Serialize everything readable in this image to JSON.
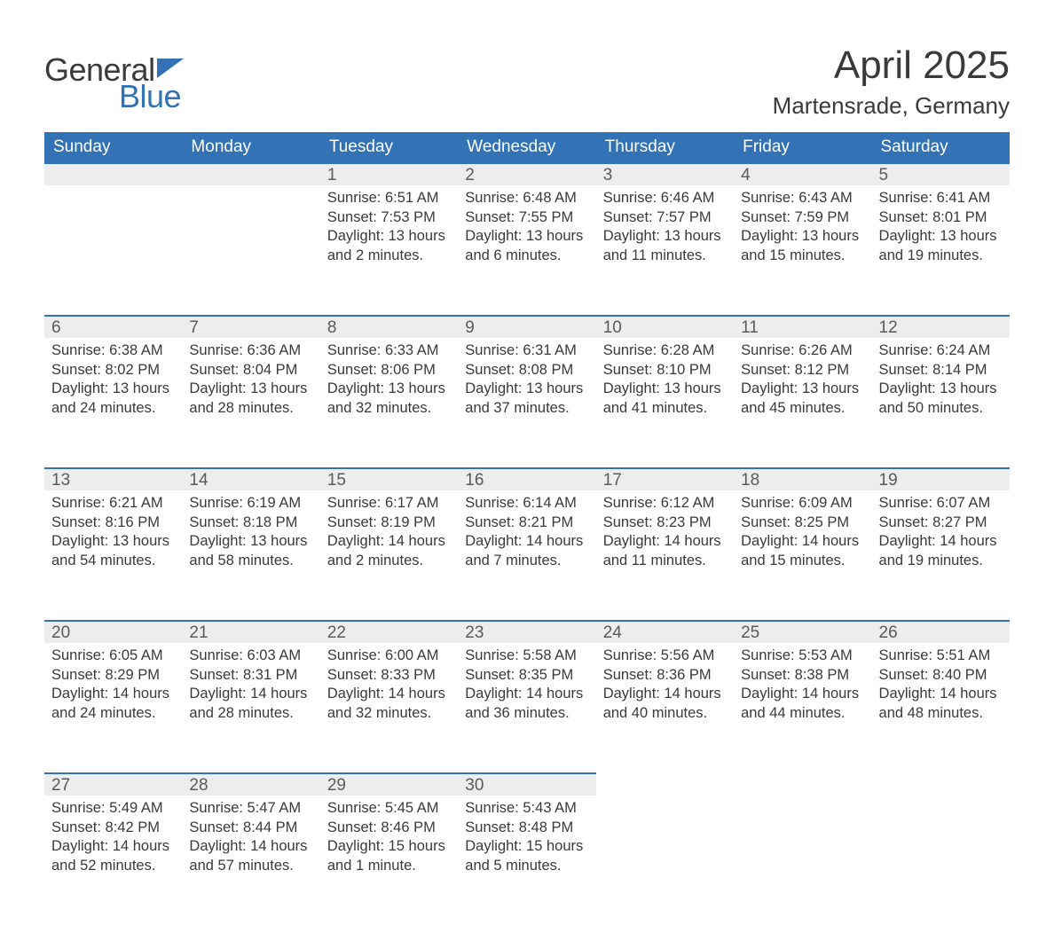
{
  "brand": {
    "text_general": "General",
    "text_blue": "Blue",
    "colors": {
      "dark": "#3a3a3a",
      "accent": "#3373b5",
      "header_bg": "#3373b5",
      "daynum_bg": "#ededed"
    }
  },
  "title": "April 2025",
  "location": "Martensrade, Germany",
  "calendar": {
    "type": "calendar-table",
    "columns": [
      "Sunday",
      "Monday",
      "Tuesday",
      "Wednesday",
      "Thursday",
      "Friday",
      "Saturday"
    ],
    "header_bg": "#3373b5",
    "header_text_color": "#ffffff",
    "daynum_bg": "#ededed",
    "daynum_border_top": "#3373b5",
    "cell_text_color": "#3a3a3a",
    "font_size_header": 19,
    "font_size_daynum": 19,
    "font_size_body": 16.5,
    "weeks": [
      [
        {
          "day": "",
          "sunrise": "",
          "sunset": "",
          "daylight": ""
        },
        {
          "day": "",
          "sunrise": "",
          "sunset": "",
          "daylight": ""
        },
        {
          "day": "1",
          "sunrise": "Sunrise: 6:51 AM",
          "sunset": "Sunset: 7:53 PM",
          "daylight": "Daylight: 13 hours and 2 minutes."
        },
        {
          "day": "2",
          "sunrise": "Sunrise: 6:48 AM",
          "sunset": "Sunset: 7:55 PM",
          "daylight": "Daylight: 13 hours and 6 minutes."
        },
        {
          "day": "3",
          "sunrise": "Sunrise: 6:46 AM",
          "sunset": "Sunset: 7:57 PM",
          "daylight": "Daylight: 13 hours and 11 minutes."
        },
        {
          "day": "4",
          "sunrise": "Sunrise: 6:43 AM",
          "sunset": "Sunset: 7:59 PM",
          "daylight": "Daylight: 13 hours and 15 minutes."
        },
        {
          "day": "5",
          "sunrise": "Sunrise: 6:41 AM",
          "sunset": "Sunset: 8:01 PM",
          "daylight": "Daylight: 13 hours and 19 minutes."
        }
      ],
      [
        {
          "day": "6",
          "sunrise": "Sunrise: 6:38 AM",
          "sunset": "Sunset: 8:02 PM",
          "daylight": "Daylight: 13 hours and 24 minutes."
        },
        {
          "day": "7",
          "sunrise": "Sunrise: 6:36 AM",
          "sunset": "Sunset: 8:04 PM",
          "daylight": "Daylight: 13 hours and 28 minutes."
        },
        {
          "day": "8",
          "sunrise": "Sunrise: 6:33 AM",
          "sunset": "Sunset: 8:06 PM",
          "daylight": "Daylight: 13 hours and 32 minutes."
        },
        {
          "day": "9",
          "sunrise": "Sunrise: 6:31 AM",
          "sunset": "Sunset: 8:08 PM",
          "daylight": "Daylight: 13 hours and 37 minutes."
        },
        {
          "day": "10",
          "sunrise": "Sunrise: 6:28 AM",
          "sunset": "Sunset: 8:10 PM",
          "daylight": "Daylight: 13 hours and 41 minutes."
        },
        {
          "day": "11",
          "sunrise": "Sunrise: 6:26 AM",
          "sunset": "Sunset: 8:12 PM",
          "daylight": "Daylight: 13 hours and 45 minutes."
        },
        {
          "day": "12",
          "sunrise": "Sunrise: 6:24 AM",
          "sunset": "Sunset: 8:14 PM",
          "daylight": "Daylight: 13 hours and 50 minutes."
        }
      ],
      [
        {
          "day": "13",
          "sunrise": "Sunrise: 6:21 AM",
          "sunset": "Sunset: 8:16 PM",
          "daylight": "Daylight: 13 hours and 54 minutes."
        },
        {
          "day": "14",
          "sunrise": "Sunrise: 6:19 AM",
          "sunset": "Sunset: 8:18 PM",
          "daylight": "Daylight: 13 hours and 58 minutes."
        },
        {
          "day": "15",
          "sunrise": "Sunrise: 6:17 AM",
          "sunset": "Sunset: 8:19 PM",
          "daylight": "Daylight: 14 hours and 2 minutes."
        },
        {
          "day": "16",
          "sunrise": "Sunrise: 6:14 AM",
          "sunset": "Sunset: 8:21 PM",
          "daylight": "Daylight: 14 hours and 7 minutes."
        },
        {
          "day": "17",
          "sunrise": "Sunrise: 6:12 AM",
          "sunset": "Sunset: 8:23 PM",
          "daylight": "Daylight: 14 hours and 11 minutes."
        },
        {
          "day": "18",
          "sunrise": "Sunrise: 6:09 AM",
          "sunset": "Sunset: 8:25 PM",
          "daylight": "Daylight: 14 hours and 15 minutes."
        },
        {
          "day": "19",
          "sunrise": "Sunrise: 6:07 AM",
          "sunset": "Sunset: 8:27 PM",
          "daylight": "Daylight: 14 hours and 19 minutes."
        }
      ],
      [
        {
          "day": "20",
          "sunrise": "Sunrise: 6:05 AM",
          "sunset": "Sunset: 8:29 PM",
          "daylight": "Daylight: 14 hours and 24 minutes."
        },
        {
          "day": "21",
          "sunrise": "Sunrise: 6:03 AM",
          "sunset": "Sunset: 8:31 PM",
          "daylight": "Daylight: 14 hours and 28 minutes."
        },
        {
          "day": "22",
          "sunrise": "Sunrise: 6:00 AM",
          "sunset": "Sunset: 8:33 PM",
          "daylight": "Daylight: 14 hours and 32 minutes."
        },
        {
          "day": "23",
          "sunrise": "Sunrise: 5:58 AM",
          "sunset": "Sunset: 8:35 PM",
          "daylight": "Daylight: 14 hours and 36 minutes."
        },
        {
          "day": "24",
          "sunrise": "Sunrise: 5:56 AM",
          "sunset": "Sunset: 8:36 PM",
          "daylight": "Daylight: 14 hours and 40 minutes."
        },
        {
          "day": "25",
          "sunrise": "Sunrise: 5:53 AM",
          "sunset": "Sunset: 8:38 PM",
          "daylight": "Daylight: 14 hours and 44 minutes."
        },
        {
          "day": "26",
          "sunrise": "Sunrise: 5:51 AM",
          "sunset": "Sunset: 8:40 PM",
          "daylight": "Daylight: 14 hours and 48 minutes."
        }
      ],
      [
        {
          "day": "27",
          "sunrise": "Sunrise: 5:49 AM",
          "sunset": "Sunset: 8:42 PM",
          "daylight": "Daylight: 14 hours and 52 minutes."
        },
        {
          "day": "28",
          "sunrise": "Sunrise: 5:47 AM",
          "sunset": "Sunset: 8:44 PM",
          "daylight": "Daylight: 14 hours and 57 minutes."
        },
        {
          "day": "29",
          "sunrise": "Sunrise: 5:45 AM",
          "sunset": "Sunset: 8:46 PM",
          "daylight": "Daylight: 15 hours and 1 minute."
        },
        {
          "day": "30",
          "sunrise": "Sunrise: 5:43 AM",
          "sunset": "Sunset: 8:48 PM",
          "daylight": "Daylight: 15 hours and 5 minutes."
        },
        {
          "day": "",
          "sunrise": "",
          "sunset": "",
          "daylight": ""
        },
        {
          "day": "",
          "sunrise": "",
          "sunset": "",
          "daylight": ""
        },
        {
          "day": "",
          "sunrise": "",
          "sunset": "",
          "daylight": ""
        }
      ]
    ]
  }
}
